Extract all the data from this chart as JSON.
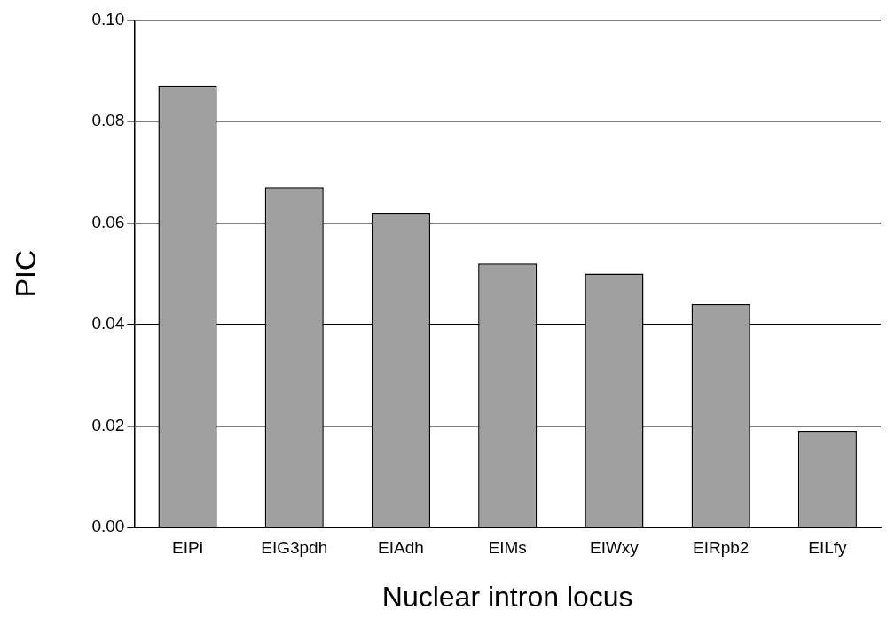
{
  "chart_data": {
    "type": "bar",
    "xlabel": "Nuclear intron locus",
    "ylabel": "PIC",
    "categories": [
      "EIPi",
      "EIG3pdh",
      "EIAdh",
      "EIMs",
      "EIWxy",
      "EIRpb2",
      "EILfy"
    ],
    "values": [
      0.087,
      0.067,
      0.062,
      0.052,
      0.05,
      0.044,
      0.019
    ],
    "color": "#a0a0a0",
    "ylim": [
      0,
      0.1
    ],
    "yticks": [
      {
        "value": 0,
        "label": "0.00"
      },
      {
        "value": 0.02,
        "label": "0.02"
      },
      {
        "value": 0.04,
        "label": "0.04"
      },
      {
        "value": 0.06,
        "label": "0.06"
      },
      {
        "value": 0.08,
        "label": "0.08"
      },
      {
        "value": 0.1,
        "label": "0.10"
      }
    ],
    "grid": "y",
    "legend": false
  }
}
